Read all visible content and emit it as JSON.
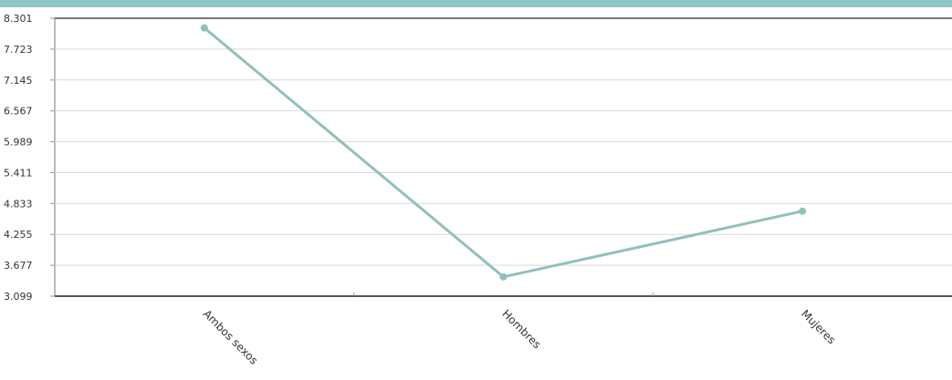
{
  "colors": {
    "series": "#8fc1bb",
    "header_bar": "#8fc5c2",
    "grid": "#d9d9d9",
    "axis": "#555555"
  },
  "chart_data": {
    "type": "line",
    "categories": [
      "Ambos sexos",
      "Hombres",
      "Mujeres"
    ],
    "series": [
      {
        "values": [
          8.12,
          3.46,
          4.69
        ]
      }
    ],
    "y_ticks": [
      "3.099",
      "3.677",
      "4.255",
      "4.833",
      "5.411",
      "5.989",
      "6.567",
      "7.145",
      "7.723",
      "8.301"
    ],
    "ylim": [
      3.099,
      8.301
    ],
    "grid": true,
    "x_label_rotation": "45deg"
  }
}
